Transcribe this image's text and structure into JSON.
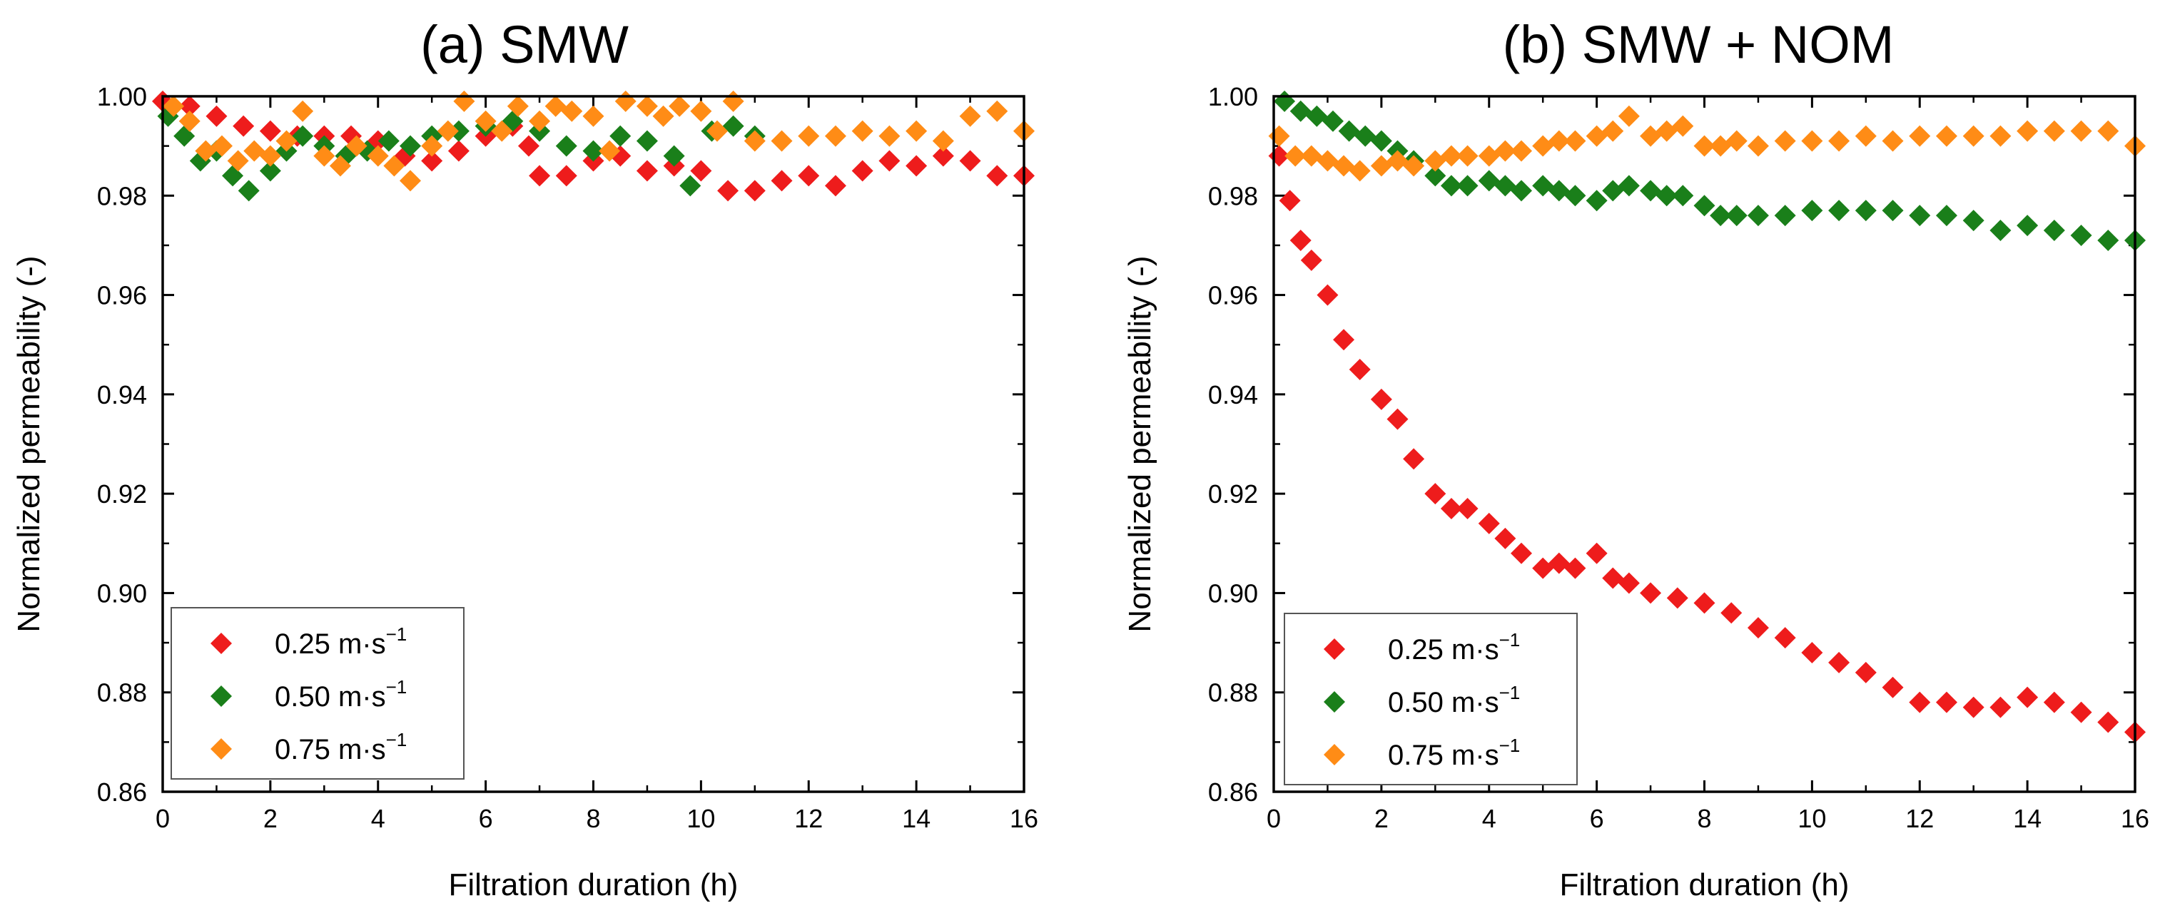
{
  "colors": {
    "s025": "#ee1c1c",
    "s050": "#1a7f1a",
    "s075": "#ff8c16"
  },
  "chart_data": [
    {
      "type": "scatter",
      "title": "(a) SMW",
      "xlabel": "Filtration duration (h)",
      "ylabel": "Normalized permeability (-)",
      "xlim": [
        0,
        16
      ],
      "ylim": [
        0.86,
        1.0
      ],
      "xticks": [
        "0",
        "2",
        "4",
        "6",
        "8",
        "10",
        "12",
        "14",
        "16"
      ],
      "yticks": [
        "0.86",
        "0.88",
        "0.90",
        "0.92",
        "0.94",
        "0.96",
        "0.98",
        "1.00"
      ],
      "legend_position": "bottom-left",
      "series": [
        {
          "name": "0.25 m·s",
          "unit_exp": "−1",
          "color": "s025",
          "x": [
            0.0,
            0.5,
            1.0,
            1.5,
            2.0,
            2.5,
            3.0,
            3.5,
            4.0,
            4.5,
            5.0,
            5.5,
            6.0,
            6.5,
            6.8,
            7.0,
            7.5,
            8.0,
            8.5,
            9.0,
            9.5,
            10.0,
            10.5,
            11.0,
            11.5,
            12.0,
            12.5,
            13.0,
            13.5,
            14.0,
            14.5,
            15.0,
            15.5,
            16.0
          ],
          "y": [
            0.999,
            0.998,
            0.996,
            0.994,
            0.993,
            0.992,
            0.992,
            0.992,
            0.991,
            0.988,
            0.987,
            0.989,
            0.992,
            0.994,
            0.99,
            0.984,
            0.984,
            0.987,
            0.988,
            0.985,
            0.986,
            0.985,
            0.981,
            0.981,
            0.983,
            0.984,
            0.982,
            0.985,
            0.987,
            0.986,
            0.988,
            0.987,
            0.984,
            0.984
          ]
        },
        {
          "name": "0.50 m·s",
          "unit_exp": "−1",
          "color": "s050",
          "x": [
            0.1,
            0.4,
            0.7,
            1.0,
            1.3,
            1.6,
            2.0,
            2.3,
            2.6,
            3.0,
            3.4,
            3.8,
            4.2,
            4.6,
            5.0,
            5.5,
            6.0,
            6.5,
            7.0,
            7.5,
            8.0,
            8.5,
            9.0,
            9.5,
            9.8,
            10.2,
            10.6,
            11.0
          ],
          "y": [
            0.996,
            0.992,
            0.987,
            0.989,
            0.984,
            0.981,
            0.985,
            0.989,
            0.992,
            0.99,
            0.988,
            0.989,
            0.991,
            0.99,
            0.992,
            0.993,
            0.994,
            0.995,
            0.993,
            0.99,
            0.989,
            0.992,
            0.991,
            0.988,
            0.982,
            0.993,
            0.994,
            0.992
          ]
        },
        {
          "name": "0.75 m·s",
          "unit_exp": "−1",
          "color": "s075",
          "x": [
            0.2,
            0.5,
            0.8,
            1.1,
            1.4,
            1.7,
            2.0,
            2.3,
            2.6,
            3.0,
            3.3,
            3.6,
            4.0,
            4.3,
            4.6,
            5.0,
            5.3,
            5.6,
            6.0,
            6.3,
            6.6,
            7.0,
            7.3,
            7.6,
            8.0,
            8.3,
            8.6,
            9.0,
            9.3,
            9.6,
            10.0,
            10.3,
            10.6,
            11.0,
            11.5,
            12.0,
            12.5,
            13.0,
            13.5,
            14.0,
            14.5,
            15.0,
            15.5,
            16.0
          ],
          "y": [
            0.998,
            0.995,
            0.989,
            0.99,
            0.987,
            0.989,
            0.988,
            0.991,
            0.997,
            0.988,
            0.986,
            0.99,
            0.988,
            0.986,
            0.983,
            0.99,
            0.993,
            0.999,
            0.995,
            0.993,
            0.998,
            0.995,
            0.998,
            0.997,
            0.996,
            0.989,
            0.999,
            0.998,
            0.996,
            0.998,
            0.997,
            0.993,
            0.999,
            0.991,
            0.991,
            0.992,
            0.992,
            0.993,
            0.992,
            0.993,
            0.991,
            0.996,
            0.997,
            0.993
          ]
        }
      ]
    },
    {
      "type": "scatter",
      "title": "(b) SMW + NOM",
      "xlabel": "Filtration duration (h)",
      "ylabel": "Normalized permeability (-)",
      "xlim": [
        0,
        16
      ],
      "ylim": [
        0.86,
        1.0
      ],
      "xticks": [
        "0",
        "2",
        "4",
        "6",
        "8",
        "10",
        "12",
        "14",
        "16"
      ],
      "yticks": [
        "0.86",
        "0.88",
        "0.90",
        "0.92",
        "0.94",
        "0.96",
        "0.98",
        "1.00"
      ],
      "legend_position": "bottom-left",
      "series": [
        {
          "name": "0.25 m·s",
          "unit_exp": "−1",
          "color": "s025",
          "x": [
            0.1,
            0.3,
            0.5,
            0.7,
            1.0,
            1.3,
            1.6,
            2.0,
            2.3,
            2.6,
            3.0,
            3.3,
            3.6,
            4.0,
            4.3,
            4.6,
            5.0,
            5.3,
            5.6,
            6.0,
            6.3,
            6.6,
            7.0,
            7.5,
            8.0,
            8.5,
            9.0,
            9.5,
            10.0,
            10.5,
            11.0,
            11.5,
            12.0,
            12.5,
            13.0,
            13.5,
            14.0,
            14.5,
            15.0,
            15.5,
            16.0
          ],
          "y": [
            0.988,
            0.979,
            0.971,
            0.967,
            0.96,
            0.951,
            0.945,
            0.939,
            0.935,
            0.927,
            0.92,
            0.917,
            0.917,
            0.914,
            0.911,
            0.908,
            0.905,
            0.906,
            0.905,
            0.908,
            0.903,
            0.902,
            0.9,
            0.899,
            0.898,
            0.896,
            0.893,
            0.891,
            0.888,
            0.886,
            0.884,
            0.881,
            0.878,
            0.878,
            0.877,
            0.877,
            0.879,
            0.878,
            0.876,
            0.874,
            0.872
          ]
        },
        {
          "name": "0.50 m·s",
          "unit_exp": "−1",
          "color": "s050",
          "x": [
            0.2,
            0.5,
            0.8,
            1.1,
            1.4,
            1.7,
            2.0,
            2.3,
            2.6,
            3.0,
            3.3,
            3.6,
            4.0,
            4.3,
            4.6,
            5.0,
            5.3,
            5.6,
            6.0,
            6.3,
            6.6,
            7.0,
            7.3,
            7.6,
            8.0,
            8.3,
            8.6,
            9.0,
            9.5,
            10.0,
            10.5,
            11.0,
            11.5,
            12.0,
            12.5,
            13.0,
            13.5,
            14.0,
            14.5,
            15.0,
            15.5,
            16.0
          ],
          "y": [
            0.999,
            0.997,
            0.996,
            0.995,
            0.993,
            0.992,
            0.991,
            0.989,
            0.987,
            0.984,
            0.982,
            0.982,
            0.983,
            0.982,
            0.981,
            0.982,
            0.981,
            0.98,
            0.979,
            0.981,
            0.982,
            0.981,
            0.98,
            0.98,
            0.978,
            0.976,
            0.976,
            0.976,
            0.976,
            0.977,
            0.977,
            0.977,
            0.977,
            0.976,
            0.976,
            0.975,
            0.973,
            0.974,
            0.973,
            0.972,
            0.971,
            0.971
          ]
        },
        {
          "name": "0.75 m·s",
          "unit_exp": "−1",
          "color": "s075",
          "x": [
            0.1,
            0.4,
            0.7,
            1.0,
            1.3,
            1.6,
            2.0,
            2.3,
            2.6,
            3.0,
            3.3,
            3.6,
            4.0,
            4.3,
            4.6,
            5.0,
            5.3,
            5.6,
            6.0,
            6.3,
            6.6,
            7.0,
            7.3,
            7.6,
            8.0,
            8.3,
            8.6,
            9.0,
            9.5,
            10.0,
            10.5,
            11.0,
            11.5,
            12.0,
            12.5,
            13.0,
            13.5,
            14.0,
            14.5,
            15.0,
            15.5,
            16.0
          ],
          "y": [
            0.992,
            0.988,
            0.988,
            0.987,
            0.986,
            0.985,
            0.986,
            0.987,
            0.986,
            0.987,
            0.988,
            0.988,
            0.988,
            0.989,
            0.989,
            0.99,
            0.991,
            0.991,
            0.992,
            0.993,
            0.996,
            0.992,
            0.993,
            0.994,
            0.99,
            0.99,
            0.991,
            0.99,
            0.991,
            0.991,
            0.991,
            0.992,
            0.991,
            0.992,
            0.992,
            0.992,
            0.992,
            0.993,
            0.993,
            0.993,
            0.993,
            0.99
          ]
        }
      ]
    }
  ]
}
